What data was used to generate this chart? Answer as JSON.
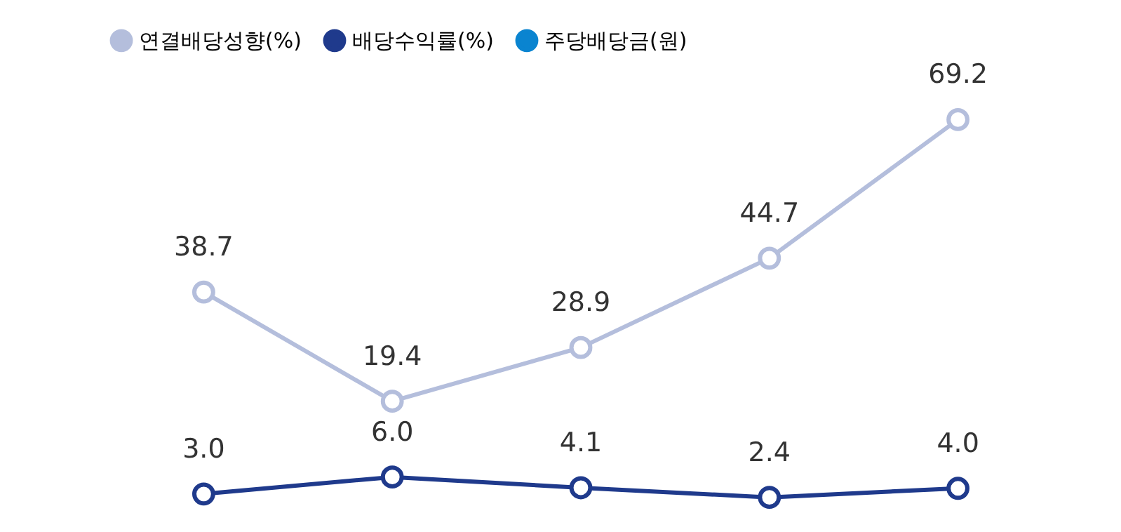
{
  "chart_data": {
    "type": "line",
    "categories": [
      null,
      null,
      null,
      null,
      null
    ],
    "series": [
      {
        "name": "연결배당성향(%)",
        "color": "#b4bedc",
        "values": [
          38.7,
          19.4,
          28.9,
          44.7,
          69.2
        ],
        "value_labels": [
          "38.7",
          "19.4",
          "28.9",
          "44.7",
          "69.2"
        ]
      },
      {
        "name": "배당수익률(%)",
        "color": "#1f3a8c",
        "values": [
          3.0,
          6.0,
          4.1,
          2.4,
          4.0
        ],
        "value_labels": [
          "3.0",
          "6.0",
          "4.1",
          "2.4",
          "4.0"
        ]
      },
      {
        "name": "주당배당금(원)",
        "color": "#0a84d0",
        "values": [
          null,
          null,
          null,
          null,
          null
        ]
      }
    ],
    "tick_labels": false,
    "grid": false,
    "legend": "top",
    "marker": "circle",
    "line_style": "solid"
  }
}
